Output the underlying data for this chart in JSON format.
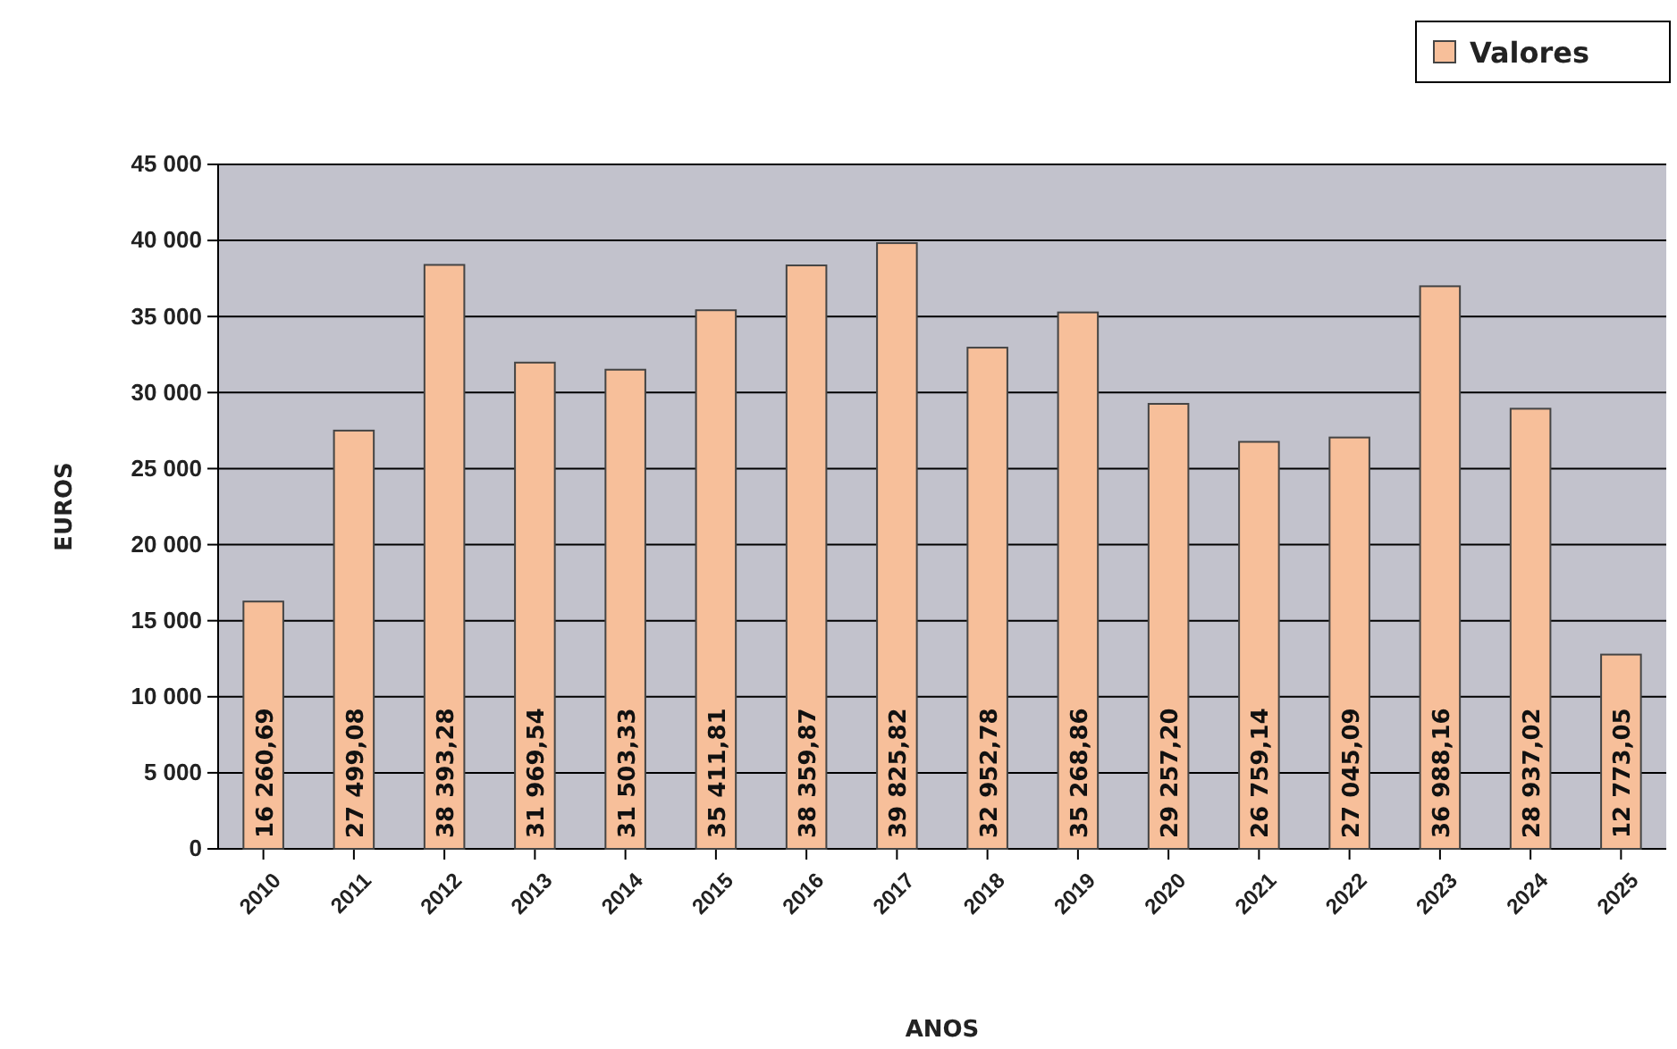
{
  "chart_data": {
    "type": "bar",
    "xlabel": "ANOS",
    "ylabel": "EUROS",
    "categories": [
      "2010",
      "2011",
      "2012",
      "2013",
      "2014",
      "2015",
      "2016",
      "2017",
      "2018",
      "2019",
      "2020",
      "2021",
      "2022",
      "2023",
      "2024",
      "2025"
    ],
    "series": [
      {
        "name": "Valores",
        "color": "#f7bf9a",
        "values": [
          16260.69,
          27499.08,
          38393.28,
          31969.54,
          31503.33,
          35411.81,
          38359.87,
          39825.82,
          32952.78,
          35268.86,
          29257.2,
          26759.14,
          27045.09,
          36988.16,
          28937.02,
          12773.05
        ],
        "value_labels": [
          "16 260,69",
          "27 499,08",
          "38 393,28",
          "31 969,54",
          "31 503,33",
          "35 411,81",
          "38 359,87",
          "39 825,82",
          "32 952,78",
          "35 268,86",
          "29 257,20",
          "26 759,14",
          "27 045,09",
          "36 988,16",
          "28 937,02",
          "12 773,05"
        ]
      }
    ],
    "ylim": [
      0,
      45000
    ],
    "yticks": [
      {
        "value": 0,
        "label": "0"
      },
      {
        "value": 5000,
        "label": "5 000"
      },
      {
        "value": 10000,
        "label": "10 000"
      },
      {
        "value": 15000,
        "label": "15 000"
      },
      {
        "value": 20000,
        "label": "20 000"
      },
      {
        "value": 25000,
        "label": "25 000"
      },
      {
        "value": 30000,
        "label": "30 000"
      },
      {
        "value": 35000,
        "label": "35 000"
      },
      {
        "value": 40000,
        "label": "40 000"
      },
      {
        "value": 45000,
        "label": "45 000"
      }
    ],
    "grid": "y",
    "legend": "top right"
  }
}
